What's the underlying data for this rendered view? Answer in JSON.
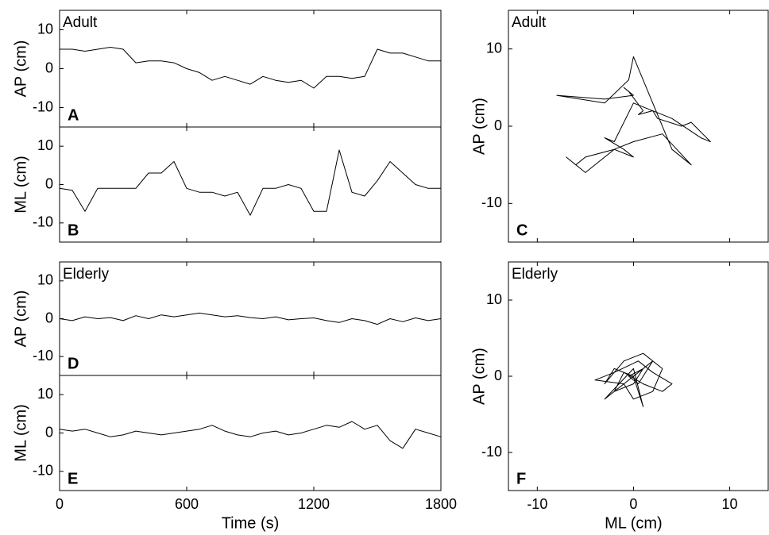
{
  "chart_data": [
    {
      "type": "line",
      "annotation": "Adult",
      "panel_label": "A",
      "ylabel": "AP (cm)",
      "x": [
        0,
        60,
        120,
        180,
        240,
        300,
        360,
        420,
        480,
        540,
        600,
        660,
        720,
        780,
        840,
        900,
        960,
        1020,
        1080,
        1140,
        1200,
        1260,
        1320,
        1380,
        1440,
        1500,
        1560,
        1620,
        1680,
        1740,
        1800
      ],
      "series": [
        {
          "color": "#000000",
          "values": [
            5,
            5,
            4.5,
            5,
            5.5,
            5,
            1.5,
            2,
            2,
            1.5,
            0,
            -1,
            -3,
            -2,
            -3,
            -4,
            -2,
            -3,
            -3.5,
            -3,
            -5,
            -2,
            -2,
            -2.5,
            -2,
            5,
            4,
            4,
            3,
            2,
            2
          ]
        }
      ],
      "xlim": [
        0,
        1800
      ],
      "xticks": [
        0,
        600,
        1200,
        1800
      ],
      "show_xtick_labels": false,
      "ylim": [
        -15,
        15
      ],
      "yticks": [
        -10,
        0,
        10
      ]
    },
    {
      "type": "line",
      "panel_label": "B",
      "ylabel": "ML (cm)",
      "x": [
        0,
        60,
        120,
        180,
        240,
        300,
        360,
        420,
        480,
        540,
        600,
        660,
        720,
        780,
        840,
        900,
        960,
        1020,
        1080,
        1140,
        1200,
        1260,
        1320,
        1380,
        1440,
        1500,
        1560,
        1620,
        1680,
        1740,
        1800
      ],
      "series": [
        {
          "color": "#000000",
          "values": [
            -1,
            -1.5,
            -7,
            -1,
            -1,
            -1,
            -1,
            3,
            3,
            6,
            -1,
            -2,
            -2,
            -3,
            -2,
            -8,
            -1,
            -1,
            0,
            -1,
            -7,
            -7,
            9,
            -2,
            -3,
            1,
            6,
            3,
            0,
            -1,
            -1
          ]
        }
      ],
      "xlim": [
        0,
        1800
      ],
      "xticks": [
        0,
        600,
        1200,
        1800
      ],
      "show_xtick_labels": false,
      "ylim": [
        -15,
        15
      ],
      "yticks": [
        -10,
        0,
        10
      ]
    },
    {
      "type": "line",
      "annotation": "Adult",
      "panel_label": "C",
      "ylabel": "AP (cm)",
      "x": [
        -8,
        -3,
        0,
        -1,
        -0.5,
        1,
        0.5,
        2,
        2.5,
        5,
        6,
        8,
        7,
        4,
        0,
        -2,
        -3,
        -1,
        0,
        -2,
        -5,
        -6,
        -7,
        -5,
        -2,
        0,
        3,
        6,
        4,
        0,
        -0.5,
        -3,
        -8
      ],
      "series": [
        {
          "color": "#000000",
          "values": [
            4,
            3.5,
            4,
            5,
            4.5,
            2,
            1.5,
            2,
            1,
            0,
            0.5,
            -2,
            -1.5,
            1,
            3,
            -2,
            -1.5,
            -3,
            -4,
            -3,
            -4,
            -5,
            -4,
            -6,
            -3,
            -2,
            -1,
            -5,
            -3,
            9,
            6,
            3,
            4
          ]
        }
      ],
      "xlim": [
        -13,
        14
      ],
      "xticks": [
        -10,
        0,
        10
      ],
      "show_xtick_labels": false,
      "ylim": [
        -15,
        15
      ],
      "yticks": [
        -10,
        0,
        10
      ]
    },
    {
      "type": "line",
      "annotation": "Elderly",
      "panel_label": "D",
      "ylabel": "AP (cm)",
      "x": [
        0,
        60,
        120,
        180,
        240,
        300,
        360,
        420,
        480,
        540,
        600,
        660,
        720,
        780,
        840,
        900,
        960,
        1020,
        1080,
        1140,
        1200,
        1260,
        1320,
        1380,
        1440,
        1500,
        1560,
        1620,
        1680,
        1740,
        1800
      ],
      "series": [
        {
          "color": "#000000",
          "values": [
            0,
            -0.5,
            0.5,
            0,
            0.3,
            -0.5,
            0.8,
            0,
            1,
            0.5,
            1,
            1.5,
            1,
            0.5,
            0.8,
            0.3,
            0,
            0.5,
            -0.3,
            0,
            0.2,
            -0.5,
            -1,
            0,
            -0.5,
            -1.5,
            0,
            -0.8,
            0.2,
            -0.5,
            0
          ]
        }
      ],
      "xlim": [
        0,
        1800
      ],
      "xticks": [
        0,
        600,
        1200,
        1800
      ],
      "show_xtick_labels": false,
      "ylim": [
        -15,
        15
      ],
      "yticks": [
        -10,
        0,
        10
      ]
    },
    {
      "type": "line",
      "panel_label": "E",
      "ylabel": "ML (cm)",
      "xlabel": "Time (s)",
      "x": [
        0,
        60,
        120,
        180,
        240,
        300,
        360,
        420,
        480,
        540,
        600,
        660,
        720,
        780,
        840,
        900,
        960,
        1020,
        1080,
        1140,
        1200,
        1260,
        1320,
        1380,
        1440,
        1500,
        1560,
        1620,
        1680,
        1740,
        1800
      ],
      "series": [
        {
          "color": "#000000",
          "values": [
            1,
            0.5,
            1,
            0,
            -1,
            -0.5,
            0.5,
            0,
            -0.5,
            0,
            0.5,
            1,
            2,
            0.5,
            -0.5,
            -1,
            0,
            0.5,
            -0.5,
            0,
            1,
            2,
            1.5,
            3,
            1,
            2,
            -2,
            -4,
            1,
            0,
            -1
          ]
        }
      ],
      "xlim": [
        0,
        1800
      ],
      "xticks": [
        0,
        600,
        1200,
        1800
      ],
      "show_xtick_labels": true,
      "ylim": [
        -15,
        15
      ],
      "yticks": [
        -10,
        0,
        10
      ]
    },
    {
      "type": "line",
      "annotation": "Elderly",
      "panel_label": "F",
      "ylabel": "AP (cm)",
      "xlabel": "ML (cm)",
      "x": [
        0,
        -2,
        -3,
        -1,
        1,
        3,
        2,
        0,
        -1,
        -4,
        -2,
        0.5,
        2,
        4,
        3,
        1,
        -1,
        -2,
        0,
        1,
        -0.5,
        0.5,
        2,
        -3,
        0,
        1,
        0
      ],
      "series": [
        {
          "color": "#000000",
          "values": [
            0,
            1,
            -1,
            2,
            3,
            1,
            -2,
            -3,
            -1,
            -0.5,
            0.5,
            2,
            0.5,
            -1,
            -2,
            -1,
            0.5,
            -2,
            -1,
            1,
            0,
            -1,
            2,
            -3,
            1,
            -4,
            0
          ]
        }
      ],
      "xlim": [
        -13,
        14
      ],
      "xticks": [
        -10,
        0,
        10
      ],
      "show_xtick_labels": true,
      "ylim": [
        -15,
        15
      ],
      "yticks": [
        -10,
        0,
        10
      ]
    }
  ]
}
